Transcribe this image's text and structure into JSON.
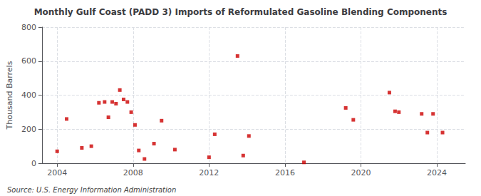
{
  "chart_data": {
    "type": "scatter",
    "title": "Monthly Gulf Coast (PADD 3) Imports of Reformulated Gasoline Blending Components",
    "ylabel": "Thousand Barrels",
    "annotations": [
      "Source: U.S. Energy Information Administration"
    ],
    "color": "#cc0000",
    "marker": "square",
    "grid": true,
    "xlim": [
      2003.2,
      2025.5
    ],
    "xticks": [
      2004,
      2008,
      2012,
      2016,
      2020,
      2024
    ],
    "ylim": [
      0,
      800
    ],
    "yticks": [
      0,
      200,
      400,
      600,
      800
    ],
    "x": [
      2004.0,
      2004.5,
      2005.3,
      2005.8,
      2006.2,
      2006.5,
      2006.7,
      2006.9,
      2007.1,
      2007.3,
      2007.5,
      2007.7,
      2007.9,
      2008.1,
      2008.3,
      2008.6,
      2009.1,
      2009.5,
      2010.2,
      2012.0,
      2012.3,
      2013.5,
      2013.8,
      2014.1,
      2017.0,
      2019.2,
      2019.6,
      2021.5,
      2021.8,
      2022.0,
      2023.2,
      2023.5,
      2023.8,
      2024.3
    ],
    "values": [
      70,
      260,
      90,
      100,
      355,
      360,
      270,
      360,
      350,
      430,
      375,
      360,
      300,
      225,
      75,
      25,
      115,
      250,
      80,
      35,
      170,
      630,
      45,
      160,
      5,
      325,
      255,
      415,
      305,
      300,
      290,
      180,
      290,
      180
    ]
  }
}
